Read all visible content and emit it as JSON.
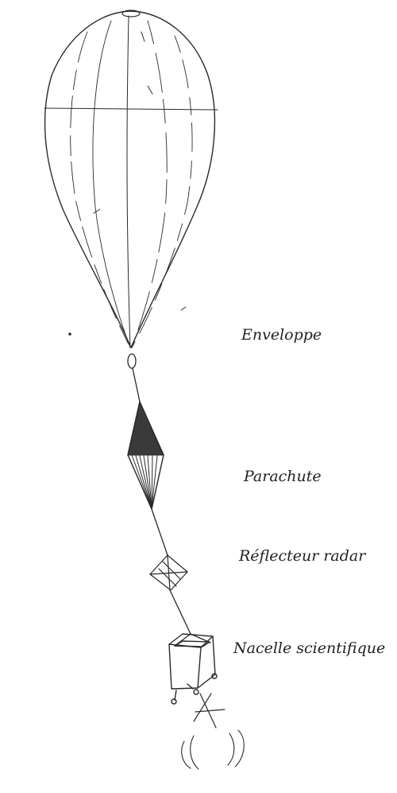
{
  "labels": {
    "envelope": "Enveloppe",
    "parachute": "Parachute",
    "radar_reflector": "Réflecteur radar",
    "gondola": "Nacelle scientifique"
  },
  "colors": {
    "line": "#2a2a2a",
    "text": "#222222",
    "background": "#ffffff"
  }
}
